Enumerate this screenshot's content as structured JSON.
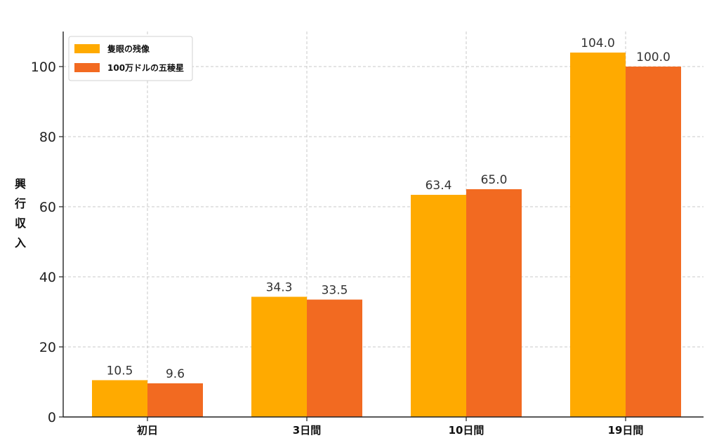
{
  "chart_data": {
    "type": "bar",
    "title": "",
    "xlabel": "",
    "ylabel": "興行収入",
    "categories": [
      "初日",
      "3日間",
      "10日間",
      "19日間"
    ],
    "series": [
      {
        "name": "隻眼の残像",
        "color": "#FFAA00",
        "values": [
          10.5,
          34.3,
          63.4,
          104.0
        ],
        "labels": [
          "10.5",
          "34.3",
          "63.4",
          "104.0"
        ]
      },
      {
        "name": "100万ドルの五稜星",
        "color": "#F26A21",
        "values": [
          9.6,
          33.5,
          65.0,
          100.0
        ],
        "labels": [
          "9.6",
          "33.5",
          "65.0",
          "100.0"
        ]
      }
    ],
    "ylim": [
      0,
      110
    ],
    "yticks": [
      0,
      20,
      40,
      60,
      80,
      100
    ],
    "grid": true,
    "legend": "top-left"
  }
}
